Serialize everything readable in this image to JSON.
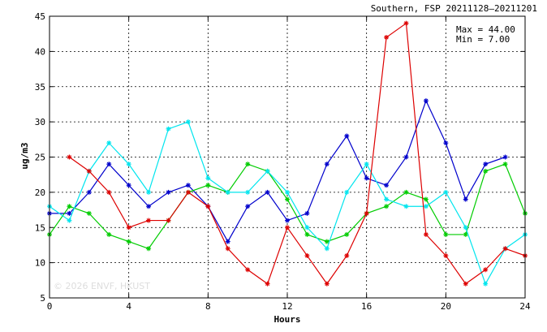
{
  "chart_data": {
    "type": "line",
    "title": "Southern, FSP 20211128–20211201",
    "xlabel": "Hours",
    "ylabel": "ug/m3",
    "xlim": [
      0,
      24
    ],
    "ylim": [
      5,
      45
    ],
    "xticks": [
      0,
      4,
      8,
      12,
      16,
      20,
      24
    ],
    "yticks": [
      5,
      10,
      15,
      20,
      25,
      30,
      35,
      40,
      45
    ],
    "grid": true,
    "stats": {
      "max_label": "Max = 44.00",
      "min_label": "Min =  7.00"
    },
    "watermark": "© 2026  ENVF, HKUST",
    "series": [
      {
        "color": "#0000cc",
        "x": [
          0,
          1,
          2,
          3,
          4,
          5,
          6,
          7,
          8,
          9,
          10,
          11,
          12,
          13,
          14,
          15,
          16,
          17,
          18,
          19,
          20,
          21,
          22,
          23
        ],
        "values": [
          17,
          17,
          20,
          24,
          21,
          18,
          20,
          21,
          18,
          13,
          18,
          20,
          16,
          17,
          24,
          28,
          22,
          21,
          25,
          33,
          27,
          19,
          24,
          25
        ]
      },
      {
        "color": "#00cc00",
        "x": [
          0,
          1,
          2,
          3,
          4,
          5,
          6,
          7,
          8,
          9,
          10,
          11,
          12,
          13,
          14,
          15,
          16,
          17,
          18,
          19,
          20,
          21,
          22,
          23,
          24
        ],
        "values": [
          14,
          18,
          17,
          14,
          13,
          12,
          16,
          20,
          21,
          20,
          24,
          23,
          19,
          14,
          13,
          14,
          17,
          18,
          20,
          19,
          14,
          14,
          23,
          24,
          17
        ]
      },
      {
        "color": "#00e5ee",
        "x": [
          0,
          1,
          2,
          3,
          4,
          5,
          6,
          7,
          8,
          9,
          10,
          11,
          12,
          13,
          14,
          15,
          16,
          17,
          18,
          19,
          20,
          21,
          22,
          23,
          24
        ],
        "values": [
          18,
          16,
          23,
          27,
          24,
          20,
          29,
          30,
          22,
          20,
          20,
          23,
          20,
          15,
          12,
          20,
          24,
          19,
          18,
          18,
          20,
          15,
          7,
          12,
          14
        ]
      },
      {
        "color": "#dd0000",
        "x": [
          1,
          2,
          3,
          4,
          5,
          6,
          7,
          8,
          9,
          10,
          11,
          12,
          13,
          14,
          15,
          16,
          17,
          18,
          19,
          20,
          21,
          22,
          23,
          24
        ],
        "values": [
          25,
          23,
          20,
          15,
          16,
          16,
          20,
          18,
          12,
          9,
          7,
          15,
          11,
          7,
          11,
          17,
          42,
          44,
          14,
          11,
          7,
          9,
          12,
          11
        ]
      }
    ]
  }
}
